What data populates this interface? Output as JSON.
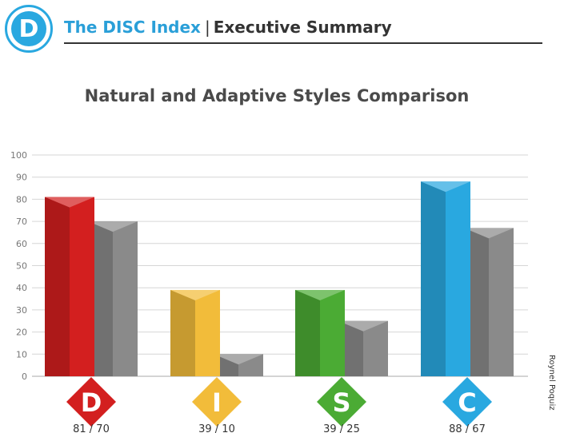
{
  "header": {
    "logo_letter": "D",
    "brand": "The DISC Index",
    "separator": "|",
    "subtitle": "Executive Summary"
  },
  "side_label": "Roynel Poquiz",
  "chart_data": {
    "type": "bar",
    "title": "Natural and Adaptive Styles Comparison",
    "categories": [
      "D",
      "I",
      "S",
      "C"
    ],
    "series": [
      {
        "values": [
          81,
          39,
          39,
          88
        ]
      },
      {
        "values": [
          70,
          10,
          25,
          67
        ]
      }
    ],
    "value_labels": [
      "81 / 70",
      "39 / 10",
      "39 / 25",
      "88 / 67"
    ],
    "ylim": [
      0,
      100
    ],
    "yticks": [
      0,
      10,
      20,
      30,
      40,
      50,
      60,
      70,
      80,
      90,
      100
    ],
    "grid": true,
    "colors": {
      "D": "#d31f1f",
      "I": "#f2bc3a",
      "S": "#4bab34",
      "C": "#29a8e0",
      "adaptive": "#8a8a8a"
    }
  }
}
